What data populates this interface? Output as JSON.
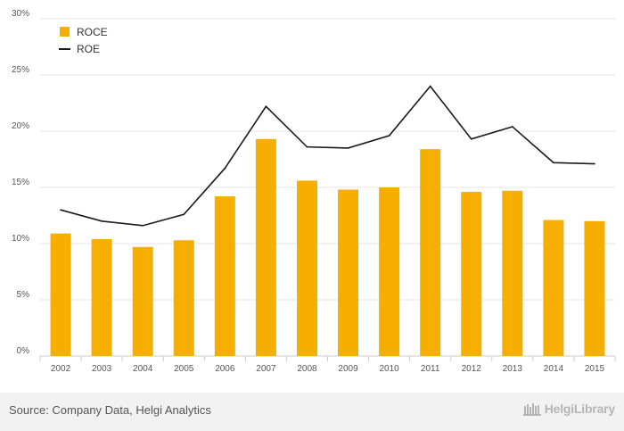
{
  "chart_data": {
    "type": "bar",
    "categories": [
      "2002",
      "2003",
      "2004",
      "2005",
      "2006",
      "2007",
      "2008",
      "2009",
      "2010",
      "2011",
      "2012",
      "2013",
      "2014",
      "2015"
    ],
    "series": [
      {
        "name": "ROCE",
        "kind": "bar",
        "color": "#f6ae00",
        "values": [
          10.9,
          10.4,
          9.7,
          10.3,
          14.2,
          19.3,
          15.6,
          14.8,
          15.0,
          18.4,
          14.6,
          14.7,
          12.1,
          12.0
        ]
      },
      {
        "name": "ROE",
        "kind": "line",
        "color": "#1a1a1a",
        "values": [
          13.0,
          12.0,
          11.6,
          12.6,
          16.7,
          22.2,
          18.6,
          18.5,
          19.6,
          24.0,
          19.3,
          20.4,
          17.2,
          17.1
        ]
      }
    ],
    "y_ticks": [
      "0%",
      "5%",
      "10%",
      "15%",
      "20%",
      "25%",
      "30%"
    ],
    "y_tick_values": [
      0,
      5,
      10,
      15,
      20,
      25,
      30
    ],
    "ylim": [
      0,
      30
    ],
    "grid": true,
    "legend_position": "top-left"
  },
  "footer": {
    "source": "Source: Company Data, Helgi Analytics",
    "brand": "HelgiLibrary"
  }
}
